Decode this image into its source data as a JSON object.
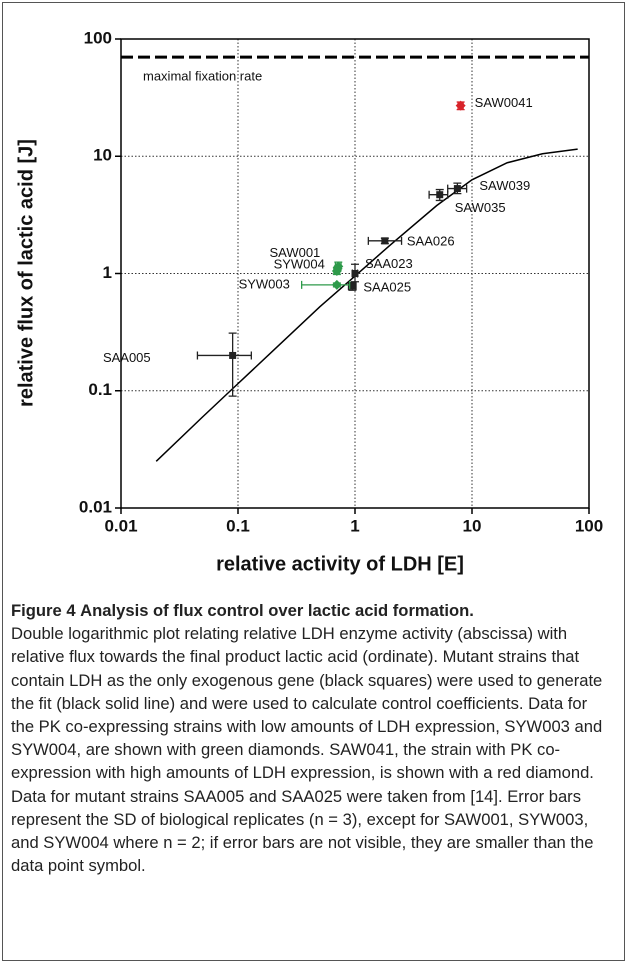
{
  "chart_data": {
    "type": "scatter",
    "x_label": "relative activity of LDH [E]",
    "y_label": "relative flux of lactic acid [J]",
    "xlim": [
      0.01,
      100
    ],
    "ylim": [
      0.01,
      100
    ],
    "xticks": [
      0.01,
      0.1,
      1,
      10,
      100
    ],
    "yticks": [
      0.01,
      0.1,
      1,
      10,
      100
    ],
    "log_x": true,
    "log_y": true,
    "grid": true,
    "reference_line": {
      "y": 70,
      "label": "maximal fixation rate",
      "color": "#000000"
    },
    "fit": {
      "color": "#000000",
      "x": [
        0.02,
        0.05,
        0.1,
        0.2,
        0.5,
        1,
        2,
        5,
        10,
        20,
        40,
        80
      ],
      "y": [
        0.025,
        0.06,
        0.115,
        0.22,
        0.52,
        0.95,
        1.75,
        3.8,
        6.3,
        8.8,
        10.5,
        11.5
      ]
    },
    "series": [
      {
        "color": "#222222",
        "marker": "square",
        "points": [
          {
            "label": "SAA005",
            "x": 0.09,
            "y": 0.2,
            "xerr": [
              0.045,
              0.13
            ],
            "yerr": [
              0.09,
              0.31
            ]
          },
          {
            "label": "SAA025",
            "x": 0.95,
            "y": 0.78,
            "xerr": [
              0.88,
              1.02
            ],
            "yerr": [
              0.72,
              0.84
            ]
          },
          {
            "label": "SAA023",
            "x": 1.0,
            "y": 1.0,
            "xerr": [
              0.95,
              1.05
            ],
            "yerr": [
              0.85,
              1.2
            ]
          },
          {
            "label": "SAA026",
            "x": 1.8,
            "y": 1.9,
            "xerr": [
              1.3,
              2.5
            ],
            "yerr": [
              1.8,
              2.0
            ]
          },
          {
            "label": "SAW035",
            "x": 5.3,
            "y": 4.7,
            "xerr": [
              4.3,
              6.2
            ],
            "yerr": [
              4.2,
              5.2
            ]
          },
          {
            "label": "SAW039",
            "x": 7.5,
            "y": 5.3,
            "xerr": [
              6.2,
              9.0
            ],
            "yerr": [
              4.8,
              5.9
            ]
          }
        ]
      },
      {
        "color": "#2e9a4a",
        "marker": "diamond",
        "points": [
          {
            "label": "SYW003",
            "x": 0.7,
            "y": 0.8,
            "xerr": [
              0.35,
              0.9
            ],
            "yerr": [
              0.77,
              0.83
            ]
          },
          {
            "label": "SYW004",
            "x": 0.7,
            "y": 1.05,
            "xerr": [
              0.66,
              0.74
            ],
            "yerr": [
              0.98,
              1.12
            ]
          },
          {
            "label": "SAW001",
            "x": 0.72,
            "y": 1.15,
            "xerr": [
              0.68,
              0.76
            ],
            "yerr": [
              1.1,
              1.25
            ]
          }
        ]
      },
      {
        "color": "#d8232a",
        "marker": "diamond",
        "points": [
          {
            "label": "SAW0041",
            "x": 8,
            "y": 27,
            "xerr": [
              7.6,
              8.4
            ],
            "yerr": [
              25,
              29
            ]
          }
        ]
      }
    ]
  },
  "caption": {
    "label": "Figure 4",
    "title": "Analysis of flux control over lactic acid formation.",
    "text": "Double logarithmic plot relating relative LDH enzyme activity (abscissa) with relative flux towards the final product lactic acid (ordinate). Mutant strains that contain LDH as the only exogenous gene (black squares) were used to generate the fit (black solid line) and were used to calculate control coefficients. Data for the PK co-expressing strains with low amounts of LDH expression, SYW003 and SYW004, are shown with green diamonds. SAW041, the strain with PK co-expression with high amounts of LDH expression, is shown with a red diamond. Data for mutant strains SAA005 and SAA025 were taken from [14]. Error bars represent the SD of biological replicates (n = 3), except for SAW001, SYW003, and SYW004 where n = 2; if error bars are not visible, they are smaller than the data point symbol."
  }
}
